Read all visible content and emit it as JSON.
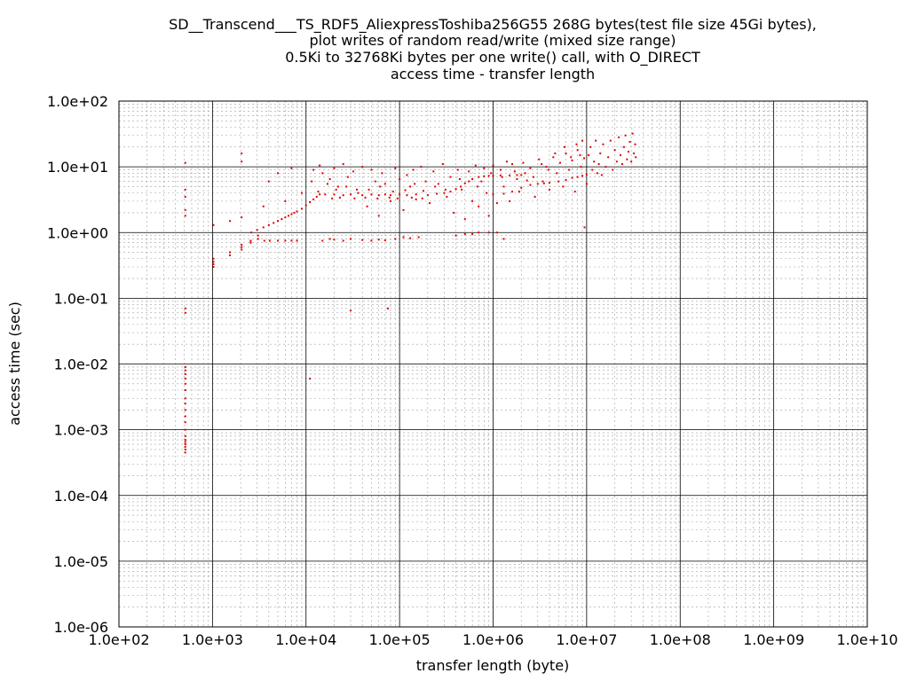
{
  "chart_data": {
    "type": "scatter",
    "title": [
      "SD__Transcend___TS_RDF5_AliexpressToshiba256G55 268G bytes(test file size 45Gi bytes),",
      "plot writes of random read/write (mixed size range)",
      "0.5Ki to 32768Ki bytes per one write() call, with O_DIRECT",
      "access time - transfer length"
    ],
    "xlabel": "transfer length (byte)",
    "ylabel": "access time (sec)",
    "x_scale": "log",
    "y_scale": "log",
    "xlim": [
      100,
      10000000000
    ],
    "ylim": [
      1e-06,
      100
    ],
    "x_ticks": [
      {
        "value": 100,
        "label": "1.0e+02"
      },
      {
        "value": 1000,
        "label": "1.0e+03"
      },
      {
        "value": 10000,
        "label": "1.0e+04"
      },
      {
        "value": 100000,
        "label": "1.0e+05"
      },
      {
        "value": 1000000,
        "label": "1.0e+06"
      },
      {
        "value": 10000000,
        "label": "1.0e+07"
      },
      {
        "value": 100000000,
        "label": "1.0e+08"
      },
      {
        "value": 1000000000,
        "label": "1.0e+09"
      },
      {
        "value": 10000000000,
        "label": "1.0e+10"
      }
    ],
    "y_ticks": [
      {
        "value": 100,
        "label": "1.0e+02"
      },
      {
        "value": 10,
        "label": "1.0e+01"
      },
      {
        "value": 1,
        "label": "1.0e+00"
      },
      {
        "value": 0.1,
        "label": "1.0e-01"
      },
      {
        "value": 0.01,
        "label": "1.0e-02"
      },
      {
        "value": 0.001,
        "label": "1.0e-03"
      },
      {
        "value": 0.0001,
        "label": "1.0e-04"
      },
      {
        "value": 1e-05,
        "label": "1.0e-05"
      },
      {
        "value": 1e-06,
        "label": "1.0e-06"
      }
    ],
    "grid": true,
    "legend": "none",
    "colors": {
      "points": "#e00000",
      "major_grid": "#000000",
      "minor_grid": "#a0a0a0"
    },
    "series": [
      {
        "points": [
          [
            512,
            0.00045
          ],
          [
            512,
            0.0005
          ],
          [
            512,
            0.00055
          ],
          [
            512,
            0.0006
          ],
          [
            512,
            0.00065
          ],
          [
            512,
            0.0007
          ],
          [
            512,
            0.0008
          ],
          [
            512,
            0.001
          ],
          [
            512,
            0.0013
          ],
          [
            512,
            0.0016
          ],
          [
            512,
            0.002
          ],
          [
            512,
            0.0025
          ],
          [
            512,
            0.003
          ],
          [
            512,
            0.004
          ],
          [
            512,
            0.005
          ],
          [
            512,
            0.006
          ],
          [
            512,
            0.007
          ],
          [
            512,
            0.008
          ],
          [
            512,
            0.009
          ],
          [
            512,
            0.06
          ],
          [
            512,
            0.07
          ],
          [
            512,
            1.8
          ],
          [
            512,
            2.2
          ],
          [
            512,
            3.5
          ],
          [
            512,
            4.5
          ],
          [
            512,
            11.5
          ],
          [
            1024,
            0.3
          ],
          [
            1024,
            0.33
          ],
          [
            1024,
            0.36
          ],
          [
            1024,
            0.4
          ],
          [
            1024,
            1.3
          ],
          [
            1536,
            0.45
          ],
          [
            1536,
            0.5
          ],
          [
            1536,
            1.5
          ],
          [
            2048,
            0.55
          ],
          [
            2048,
            0.6
          ],
          [
            2048,
            0.65
          ],
          [
            2048,
            1.7
          ],
          [
            2048,
            12
          ],
          [
            2048,
            16
          ],
          [
            2560,
            0.7
          ],
          [
            2560,
            0.75
          ],
          [
            3072,
            0.8
          ],
          [
            3072,
            0.9
          ],
          [
            3584,
            0.75
          ],
          [
            4096,
            0.75
          ],
          [
            5000,
            0.75
          ],
          [
            6000,
            0.75
          ],
          [
            7000,
            0.75
          ],
          [
            8000,
            0.75
          ],
          [
            2600,
            1.0
          ],
          [
            3000,
            1.1
          ],
          [
            3500,
            1.2
          ],
          [
            4000,
            1.3
          ],
          [
            4500,
            1.4
          ],
          [
            5000,
            1.5
          ],
          [
            5500,
            1.6
          ],
          [
            6000,
            1.7
          ],
          [
            6500,
            1.8
          ],
          [
            7000,
            1.9
          ],
          [
            7500,
            2.0
          ],
          [
            8000,
            2.1
          ],
          [
            9000,
            2.3
          ],
          [
            10000,
            2.6
          ],
          [
            11000,
            2.9
          ],
          [
            12000,
            3.2
          ],
          [
            13000,
            3.5
          ],
          [
            14000,
            3.8
          ],
          [
            3500,
            2.5
          ],
          [
            4000,
            6.0
          ],
          [
            5000,
            8.0
          ],
          [
            7000,
            9.5
          ],
          [
            9000,
            4.0
          ],
          [
            6000,
            3.0
          ],
          [
            16000,
            3.8
          ],
          [
            20000,
            3.8
          ],
          [
            25000,
            3.7
          ],
          [
            30000,
            3.8
          ],
          [
            40000,
            3.7
          ],
          [
            50000,
            3.8
          ],
          [
            60000,
            3.7
          ],
          [
            70000,
            3.8
          ],
          [
            80000,
            3.7
          ],
          [
            100000,
            3.8
          ],
          [
            120000,
            3.7
          ],
          [
            150000,
            3.8
          ],
          [
            200000,
            3.7
          ],
          [
            250000,
            3.9
          ],
          [
            300000,
            4.0
          ],
          [
            350000,
            4.2
          ],
          [
            400000,
            4.6
          ],
          [
            450000,
            5.0
          ],
          [
            500000,
            5.6
          ],
          [
            550000,
            6.0
          ],
          [
            600000,
            6.5
          ],
          [
            700000,
            7.0
          ],
          [
            800000,
            7.2
          ],
          [
            900000,
            7.3
          ],
          [
            1000000,
            7.3
          ],
          [
            1200000,
            7.4
          ],
          [
            1500000,
            7.4
          ],
          [
            1800000,
            7.5
          ],
          [
            2000000,
            7.5
          ],
          [
            1000000,
            3.8
          ],
          [
            1300000,
            3.9
          ],
          [
            1600000,
            4.2
          ],
          [
            2000000,
            4.8
          ],
          [
            2500000,
            5.3
          ],
          [
            3000000,
            5.5
          ],
          [
            3500000,
            5.6
          ],
          [
            4000000,
            5.7
          ],
          [
            5000000,
            6.0
          ],
          [
            6000000,
            6.3
          ],
          [
            7000000,
            6.8
          ],
          [
            8000000,
            7.0
          ],
          [
            9000000,
            7.3
          ],
          [
            10000000,
            7.6
          ],
          [
            15000,
            0.75
          ],
          [
            18000,
            0.8
          ],
          [
            20000,
            0.78
          ],
          [
            25000,
            0.75
          ],
          [
            30000,
            0.8
          ],
          [
            40000,
            0.77
          ],
          [
            50000,
            0.75
          ],
          [
            60000,
            0.78
          ],
          [
            70000,
            0.76
          ],
          [
            90000,
            0.8
          ],
          [
            110000,
            0.85
          ],
          [
            130000,
            0.82
          ],
          [
            160000,
            0.85
          ],
          [
            400000,
            0.9
          ],
          [
            500000,
            0.95
          ],
          [
            600000,
            0.95
          ],
          [
            700000,
            1.0
          ],
          [
            900000,
            1.0
          ],
          [
            1100000,
            1.0
          ],
          [
            1300000,
            0.8
          ],
          [
            9500000,
            1.2
          ],
          [
            75000,
            0.07
          ],
          [
            30000,
            0.065
          ],
          [
            11000,
            0.006
          ],
          [
            12000,
            9.0
          ],
          [
            14000,
            10.5
          ],
          [
            15000,
            8.0
          ],
          [
            18000,
            6.5
          ],
          [
            20000,
            9.5
          ],
          [
            22000,
            5.0
          ],
          [
            25000,
            11.0
          ],
          [
            28000,
            7.0
          ],
          [
            32000,
            8.5
          ],
          [
            35000,
            4.5
          ],
          [
            40000,
            10.0
          ],
          [
            45000,
            2.5
          ],
          [
            50000,
            9.0
          ],
          [
            55000,
            6.0
          ],
          [
            60000,
            1.8
          ],
          [
            65000,
            8.0
          ],
          [
            70000,
            5.5
          ],
          [
            80000,
            3.0
          ],
          [
            90000,
            9.5
          ],
          [
            100000,
            6.5
          ],
          [
            110000,
            2.2
          ],
          [
            120000,
            7.5
          ],
          [
            130000,
            5.0
          ],
          [
            140000,
            9.0
          ],
          [
            150000,
            3.2
          ],
          [
            170000,
            10.0
          ],
          [
            190000,
            6.0
          ],
          [
            210000,
            2.8
          ],
          [
            230000,
            8.5
          ],
          [
            260000,
            5.5
          ],
          [
            290000,
            11.0
          ],
          [
            320000,
            3.5
          ],
          [
            350000,
            7.0
          ],
          [
            380000,
            2.0
          ],
          [
            420000,
            9.0
          ],
          [
            460000,
            4.5
          ],
          [
            500000,
            1.6
          ],
          [
            550000,
            8.5
          ],
          [
            600000,
            3.0
          ],
          [
            650000,
            10.5
          ],
          [
            700000,
            2.5
          ],
          [
            750000,
            6.0
          ],
          [
            800000,
            9.5
          ],
          [
            850000,
            4.0
          ],
          [
            900000,
            1.8
          ],
          [
            1000000,
            10.5
          ],
          [
            1100000,
            2.8
          ],
          [
            1200000,
            9.0
          ],
          [
            1300000,
            5.0
          ],
          [
            1400000,
            12.0
          ],
          [
            1500000,
            3.0
          ],
          [
            1700000,
            8.5
          ],
          [
            1900000,
            4.2
          ],
          [
            2100000,
            11.5
          ],
          [
            2300000,
            6.2
          ],
          [
            2500000,
            9.5
          ],
          [
            2800000,
            3.5
          ],
          [
            3100000,
            13.0
          ],
          [
            3400000,
            6.0
          ],
          [
            3700000,
            10.0
          ],
          [
            4000000,
            4.5
          ],
          [
            4400000,
            14.0
          ],
          [
            4800000,
            8.0
          ],
          [
            5200000,
            11.5
          ],
          [
            5600000,
            5.0
          ],
          [
            6000000,
            16.0
          ],
          [
            6500000,
            9.0
          ],
          [
            7000000,
            12.5
          ],
          [
            7500000,
            4.2
          ],
          [
            8000000,
            18.0
          ],
          [
            8700000,
            10.0
          ],
          [
            9400000,
            13.5
          ],
          [
            10000000,
            5.5
          ],
          [
            11000000,
            20.0
          ],
          [
            12000000,
            12.0
          ],
          [
            13000000,
            8.0
          ],
          [
            14000000,
            16.0
          ],
          [
            15000000,
            22.0
          ],
          [
            16000000,
            10.0
          ],
          [
            17000000,
            14.0
          ],
          [
            18000000,
            25.0
          ],
          [
            19000000,
            9.0
          ],
          [
            20000000,
            18.0
          ],
          [
            21000000,
            12.0
          ],
          [
            22000000,
            28.0
          ],
          [
            23000000,
            15.0
          ],
          [
            24000000,
            11.0
          ],
          [
            25000000,
            20.0
          ],
          [
            26000000,
            30.0
          ],
          [
            27000000,
            13.0
          ],
          [
            28000000,
            17.0
          ],
          [
            29000000,
            24.0
          ],
          [
            30000000,
            12.0
          ],
          [
            31000000,
            32.0
          ],
          [
            32000000,
            16.0
          ],
          [
            33000000,
            22.0
          ],
          [
            33500000,
            14.0
          ],
          [
            10500000,
            15.0
          ],
          [
            11500000,
            9.0
          ],
          [
            12500000,
            25.0
          ],
          [
            13500000,
            11.0
          ],
          [
            14500000,
            7.5
          ],
          [
            9000000,
            25.0
          ],
          [
            8500000,
            15.0
          ],
          [
            7800000,
            22.0
          ],
          [
            6800000,
            14.0
          ],
          [
            5800000,
            20.0
          ],
          [
            4600000,
            16.0
          ],
          [
            3900000,
            9.0
          ],
          [
            3300000,
            11.0
          ],
          [
            2700000,
            7.0
          ],
          [
            2200000,
            8.0
          ],
          [
            1800000,
            6.5
          ],
          [
            1600000,
            11.0
          ],
          [
            1250000,
            7.0
          ],
          [
            950000,
            8.0
          ],
          [
            680000,
            5.0
          ],
          [
            440000,
            6.5
          ],
          [
            310000,
            4.5
          ],
          [
            240000,
            5.0
          ],
          [
            180000,
            4.3
          ],
          [
            145000,
            5.5
          ],
          [
            115000,
            4.4
          ],
          [
            85000,
            4.2
          ],
          [
            62000,
            5.0
          ],
          [
            47000,
            4.5
          ],
          [
            36000,
            4.0
          ],
          [
            27000,
            5.0
          ],
          [
            21000,
            4.5
          ],
          [
            17000,
            5.5
          ],
          [
            13500,
            4.2
          ],
          [
            11500,
            6.0
          ],
          [
            19000,
            3.3
          ],
          [
            23000,
            3.4
          ],
          [
            33000,
            3.3
          ],
          [
            43000,
            3.4
          ],
          [
            58000,
            3.3
          ],
          [
            78000,
            3.4
          ],
          [
            95000,
            3.3
          ],
          [
            135000,
            3.4
          ],
          [
            175000,
            3.3
          ]
        ]
      }
    ]
  }
}
